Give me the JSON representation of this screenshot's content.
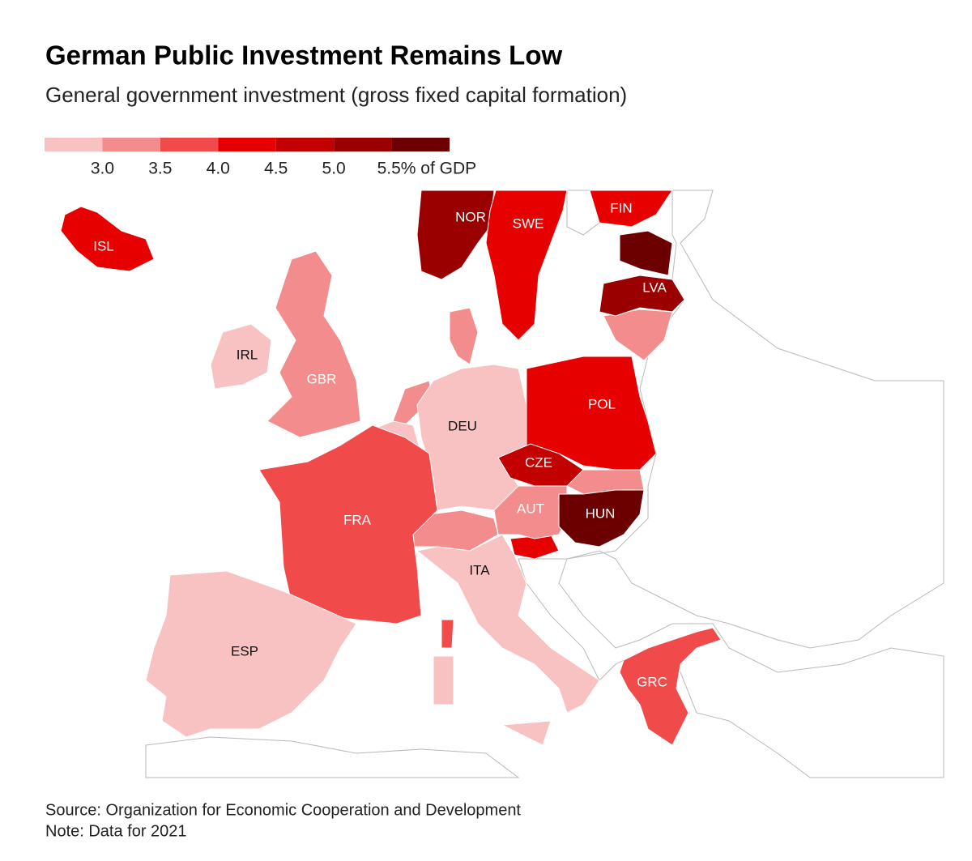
{
  "chart_data": {
    "type": "choropleth",
    "title": "German Public Investment Remains Low",
    "subtitle": "General government investment (gross fixed capital formation)",
    "legend": {
      "colors": [
        "#f9c2c2",
        "#f38d8d",
        "#f04a4a",
        "#e60000",
        "#c20000",
        "#9a0000",
        "#6c0000"
      ],
      "lim": [
        2.5,
        6.0
      ],
      "ticks": [
        {
          "value": 3.0,
          "label": "3.0"
        },
        {
          "value": 3.5,
          "label": "3.5"
        },
        {
          "value": 4.0,
          "label": "4.0"
        },
        {
          "value": 4.5,
          "label": "4.5"
        },
        {
          "value": 5.0,
          "label": "5.0"
        },
        {
          "value": 5.5,
          "label": "5.5% of GDP"
        }
      ]
    },
    "regions": [
      {
        "label": "ISL",
        "color": "#e60000"
      },
      {
        "label": "NOR",
        "color": "#9a0000"
      },
      {
        "label": "SWE",
        "color": "#e60000"
      },
      {
        "label": "FIN",
        "color": "#e60000"
      },
      {
        "label": "LVA",
        "color": "#9a0000"
      },
      {
        "label": "IRL",
        "color": "#f9c2c2"
      },
      {
        "label": "GBR",
        "color": "#f38d8d"
      },
      {
        "label": "DEU",
        "color": "#f9c2c2"
      },
      {
        "label": "POL",
        "color": "#e60000"
      },
      {
        "label": "CZE",
        "color": "#c20000"
      },
      {
        "label": "FRA",
        "color": "#f04a4a"
      },
      {
        "label": "AUT",
        "color": "#f38d8d"
      },
      {
        "label": "HUN",
        "color": "#6c0000"
      },
      {
        "label": "ITA",
        "color": "#f9c2c2"
      },
      {
        "label": "ESP",
        "color": "#f9c2c2"
      },
      {
        "label": "GRC",
        "color": "#f04a4a"
      }
    ],
    "source": "Source: Organization for Economic Cooperation and Development",
    "note": "Note: Data for 2021"
  }
}
